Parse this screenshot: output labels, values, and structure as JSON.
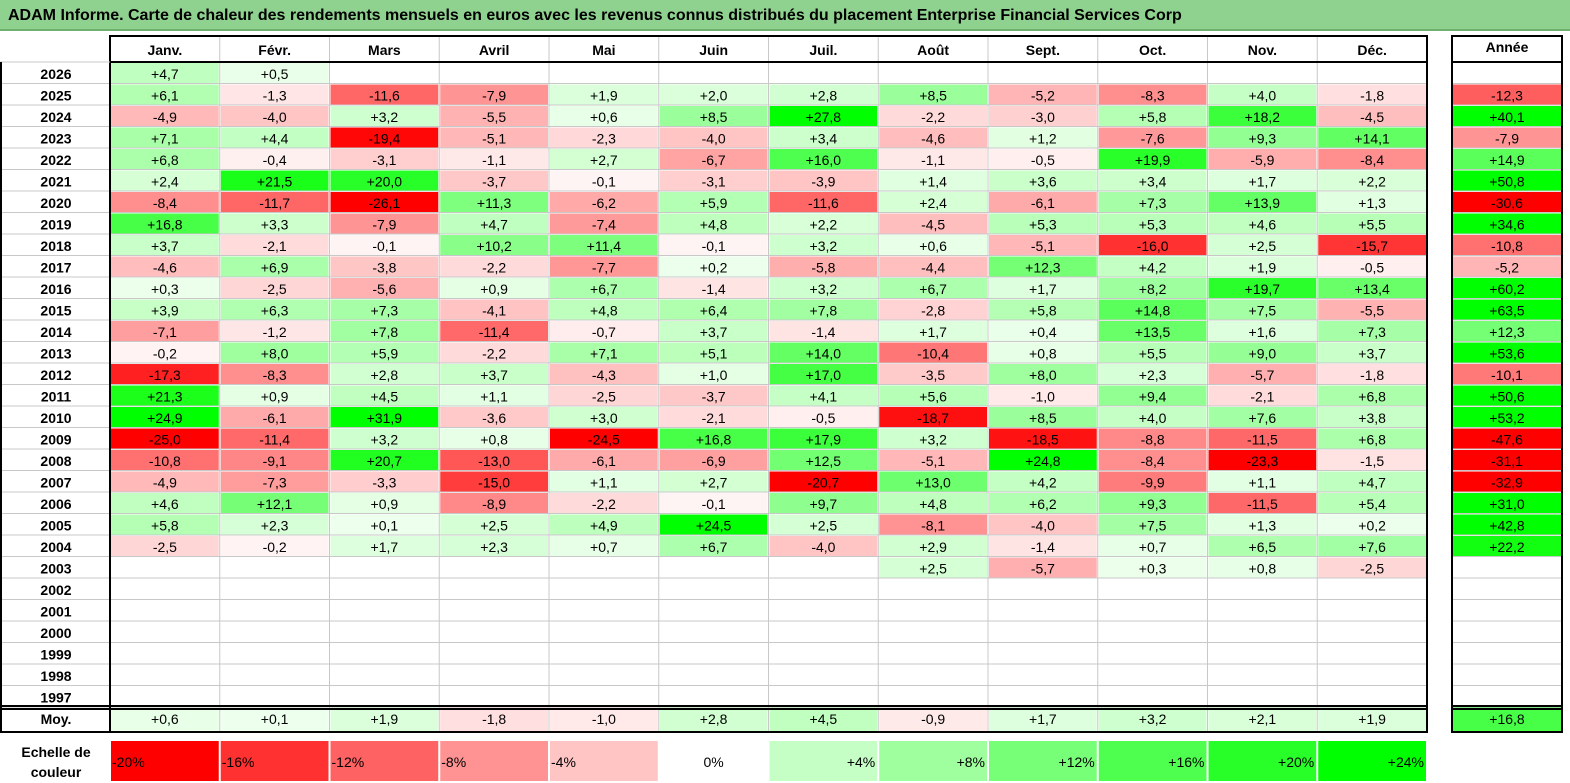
{
  "title": "ADAM Informe. Carte de chaleur des rendements mensuels en euros avec les revenus connus distribués du placement Enterprise Financial Services Corp",
  "chart_data": {
    "type": "heatmap",
    "title": "ADAM Informe. Carte de chaleur des rendements mensuels en euros avec les revenus connus distribués du placement Enterprise Financial Services Corp",
    "months": [
      "Janv.",
      "Févr.",
      "Mars",
      "Avril",
      "Mai",
      "Juin",
      "Juil.",
      "Août",
      "Sept.",
      "Oct.",
      "Nov.",
      "Déc."
    ],
    "year_label": "Année",
    "rows": [
      {
        "year": "2026",
        "values": [
          "+4,7",
          "+0,5",
          null,
          null,
          null,
          null,
          null,
          null,
          null,
          null,
          null,
          null
        ],
        "annual": null
      },
      {
        "year": "2025",
        "values": [
          "+6,1",
          "-1,3",
          "-11,6",
          "-7,9",
          "+1,9",
          "+2,0",
          "+2,8",
          "+8,5",
          "-5,2",
          "-8,3",
          "+4,0",
          "-1,8"
        ],
        "annual": "-12,3"
      },
      {
        "year": "2024",
        "values": [
          "-4,9",
          "-4,0",
          "+3,2",
          "-5,5",
          "+0,6",
          "+8,5",
          "+27,8",
          "-2,2",
          "-3,0",
          "+5,8",
          "+18,2",
          "-4,5"
        ],
        "annual": "+40,1"
      },
      {
        "year": "2023",
        "values": [
          "+7,1",
          "+4,4",
          "-19,4",
          "-5,1",
          "-2,3",
          "-4,0",
          "+3,4",
          "-4,6",
          "+1,2",
          "-7,6",
          "+9,3",
          "+14,1"
        ],
        "annual": "-7,9"
      },
      {
        "year": "2022",
        "values": [
          "+6,8",
          "-0,4",
          "-3,1",
          "-1,1",
          "+2,7",
          "-6,7",
          "+16,0",
          "-1,1",
          "-0,5",
          "+19,9",
          "-5,9",
          "-8,4"
        ],
        "annual": "+14,9"
      },
      {
        "year": "2021",
        "values": [
          "+2,4",
          "+21,5",
          "+20,0",
          "-3,7",
          "-0,1",
          "-3,1",
          "-3,9",
          "+1,4",
          "+3,6",
          "+3,4",
          "+1,7",
          "+2,2"
        ],
        "annual": "+50,8"
      },
      {
        "year": "2020",
        "values": [
          "-8,4",
          "-11,7",
          "-26,1",
          "+11,3",
          "-6,2",
          "+5,9",
          "-11,6",
          "+2,4",
          "-6,1",
          "+7,3",
          "+13,9",
          "+1,3"
        ],
        "annual": "-30,6"
      },
      {
        "year": "2019",
        "values": [
          "+16,8",
          "+3,3",
          "-7,9",
          "+4,7",
          "-7,4",
          "+4,8",
          "+2,2",
          "-4,5",
          "+5,3",
          "+5,3",
          "+4,6",
          "+5,5"
        ],
        "annual": "+34,6"
      },
      {
        "year": "2018",
        "values": [
          "+3,7",
          "-2,1",
          "-0,1",
          "+10,2",
          "+11,4",
          "-0,1",
          "+3,2",
          "+0,6",
          "-5,1",
          "-16,0",
          "+2,5",
          "-15,7"
        ],
        "annual": "-10,8"
      },
      {
        "year": "2017",
        "values": [
          "-4,6",
          "+6,9",
          "-3,8",
          "-2,2",
          "-7,7",
          "+0,2",
          "-5,8",
          "-4,4",
          "+12,3",
          "+4,2",
          "+1,9",
          "-0,5"
        ],
        "annual": "-5,2"
      },
      {
        "year": "2016",
        "values": [
          "+0,3",
          "-2,5",
          "-5,6",
          "+0,9",
          "+6,7",
          "-1,4",
          "+3,2",
          "+6,7",
          "+1,7",
          "+8,2",
          "+19,7",
          "+13,4"
        ],
        "annual": "+60,2"
      },
      {
        "year": "2015",
        "values": [
          "+3,9",
          "+6,3",
          "+7,3",
          "-4,1",
          "+4,8",
          "+6,4",
          "+7,8",
          "-2,8",
          "+5,8",
          "+14,8",
          "+7,5",
          "-5,5"
        ],
        "annual": "+63,5"
      },
      {
        "year": "2014",
        "values": [
          "-7,1",
          "-1,2",
          "+7,8",
          "-11,4",
          "-0,7",
          "+3,7",
          "-1,4",
          "+1,7",
          "+0,4",
          "+13,5",
          "+1,6",
          "+7,3"
        ],
        "annual": "+12,3"
      },
      {
        "year": "2013",
        "values": [
          "-0,2",
          "+8,0",
          "+5,9",
          "-2,2",
          "+7,1",
          "+5,1",
          "+14,0",
          "-10,4",
          "+0,8",
          "+5,5",
          "+9,0",
          "+3,7"
        ],
        "annual": "+53,6"
      },
      {
        "year": "2012",
        "values": [
          "-17,3",
          "-8,3",
          "+2,8",
          "+3,7",
          "-4,3",
          "+1,0",
          "+17,0",
          "-3,5",
          "+8,0",
          "+2,3",
          "-5,7",
          "-1,8"
        ],
        "annual": "-10,1"
      },
      {
        "year": "2011",
        "values": [
          "+21,3",
          "+0,9",
          "+4,5",
          "+1,1",
          "-2,5",
          "-3,7",
          "+4,1",
          "+5,6",
          "-1,0",
          "+9,4",
          "-2,1",
          "+6,8"
        ],
        "annual": "+50,6"
      },
      {
        "year": "2010",
        "values": [
          "+24,9",
          "-6,1",
          "+31,9",
          "-3,6",
          "+3,0",
          "-2,1",
          "-0,5",
          "-18,7",
          "+8,5",
          "+4,0",
          "+7,6",
          "+3,8"
        ],
        "annual": "+53,2"
      },
      {
        "year": "2009",
        "values": [
          "-25,0",
          "-11,4",
          "+3,2",
          "+0,8",
          "-24,5",
          "+16,8",
          "+17,9",
          "+3,2",
          "-18,5",
          "-8,8",
          "-11,5",
          "+6,8"
        ],
        "annual": "-47,6"
      },
      {
        "year": "2008",
        "values": [
          "-10,8",
          "-9,1",
          "+20,7",
          "-13,0",
          "-6,1",
          "-6,9",
          "+12,5",
          "-5,1",
          "+24,8",
          "-8,4",
          "-23,3",
          "-1,5"
        ],
        "annual": "-31,1"
      },
      {
        "year": "2007",
        "values": [
          "-4,9",
          "-7,3",
          "-3,3",
          "-15,0",
          "+1,1",
          "+2,7",
          "-20,7",
          "+13,0",
          "+4,2",
          "-9,9",
          "+1,1",
          "+4,7"
        ],
        "annual": "-32,9"
      },
      {
        "year": "2006",
        "values": [
          "+4,6",
          "+12,1",
          "+0,9",
          "-8,9",
          "-2,2",
          "-0,1",
          "+9,7",
          "+4,8",
          "+6,2",
          "+9,3",
          "-11,5",
          "+5,4"
        ],
        "annual": "+31,0"
      },
      {
        "year": "2005",
        "values": [
          "+5,8",
          "+2,3",
          "+0,1",
          "+2,5",
          "+4,9",
          "+24,5",
          "+2,5",
          "-8,1",
          "-4,0",
          "+7,5",
          "+1,3",
          "+0,2"
        ],
        "annual": "+42,8"
      },
      {
        "year": "2004",
        "values": [
          "-2,5",
          "-0,2",
          "+1,7",
          "+2,3",
          "+0,7",
          "+6,7",
          "-4,0",
          "+2,9",
          "-1,4",
          "+0,7",
          "+6,5",
          "+7,6"
        ],
        "annual": "+22,2"
      },
      {
        "year": "2003",
        "values": [
          null,
          null,
          null,
          null,
          null,
          null,
          null,
          "+2,5",
          "-5,7",
          "+0,3",
          "+0,8",
          "-2,5"
        ],
        "annual": null
      },
      {
        "year": "2002",
        "values": [
          null,
          null,
          null,
          null,
          null,
          null,
          null,
          null,
          null,
          null,
          null,
          null
        ],
        "annual": null
      },
      {
        "year": "2001",
        "values": [
          null,
          null,
          null,
          null,
          null,
          null,
          null,
          null,
          null,
          null,
          null,
          null
        ],
        "annual": null
      },
      {
        "year": "2000",
        "values": [
          null,
          null,
          null,
          null,
          null,
          null,
          null,
          null,
          null,
          null,
          null,
          null
        ],
        "annual": null
      },
      {
        "year": "1999",
        "values": [
          null,
          null,
          null,
          null,
          null,
          null,
          null,
          null,
          null,
          null,
          null,
          null
        ],
        "annual": null
      },
      {
        "year": "1998",
        "values": [
          null,
          null,
          null,
          null,
          null,
          null,
          null,
          null,
          null,
          null,
          null,
          null
        ],
        "annual": null
      },
      {
        "year": "1997",
        "values": [
          null,
          null,
          null,
          null,
          null,
          null,
          null,
          null,
          null,
          null,
          null,
          null
        ],
        "annual": null
      }
    ],
    "average": {
      "label": "Moy.",
      "values": [
        "+0,6",
        "+0,1",
        "+1,9",
        "-1,8",
        "-1,0",
        "+2,8",
        "+4,5",
        "-0,9",
        "+1,7",
        "+3,2",
        "+2,1",
        "+1,9"
      ],
      "annual": "+16,8"
    },
    "color_scale": {
      "label": "Echelle de couleur",
      "steps": [
        "-20%",
        "-16%",
        "-12%",
        "-8%",
        "-4%",
        "0%",
        "+4%",
        "+8%",
        "+12%",
        "+16%",
        "+20%",
        "+24%"
      ],
      "step_values": [
        -20,
        -16,
        -12,
        -8,
        -4,
        0,
        4,
        8,
        12,
        16,
        20,
        24
      ]
    },
    "colors": {
      "negative_max": "#ff0000",
      "neutral": "#ffffff",
      "positive_max": "#00ff00",
      "title_bg": "#8fd18f",
      "grid": "#c8c8c8",
      "border": "#000000"
    }
  }
}
